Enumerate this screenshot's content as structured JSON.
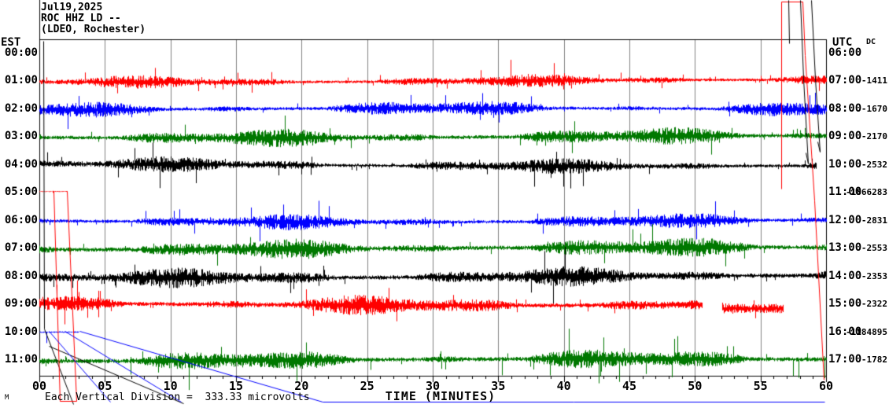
{
  "header": {
    "date": "Jul19,2025",
    "station": "ROC HHZ LD --",
    "network": "(LDEO, Rochester)"
  },
  "axes": {
    "left_label": "EST",
    "right_label": "UTC",
    "dc_label": "DC",
    "x_label": "TIME (MINUTES)"
  },
  "footer": {
    "scale_note": "Each Vertical Division =  333.33 microvolts",
    "corner_glyph": "M"
  },
  "colors": {
    "red": "#FF0000",
    "blue": "#0000FF",
    "green": "#007800",
    "black": "#000000",
    "grid": "#808080",
    "background": "#FFFFFF"
  },
  "chart_data": {
    "type": "line",
    "title": "ROC HHZ LD -- (LDEO, Rochester) Jul19,2025",
    "xlabel": "TIME (MINUTES)",
    "x_range": [
      0,
      60
    ],
    "x_ticks": [
      "00",
      "05",
      "10",
      "15",
      "20",
      "25",
      "30",
      "35",
      "40",
      "45",
      "50",
      "55",
      "60"
    ],
    "minutes_per_row": 60,
    "grid_interval_minutes": 5,
    "minor_tick_minutes": 1,
    "rows": [
      {
        "est": "00:00",
        "utc": "06:00",
        "dc": "",
        "color": "#000000",
        "segments": []
      },
      {
        "est": "01:00",
        "utc": "07:00",
        "dc": "-1411",
        "color": "#FF0000",
        "segments": [
          {
            "x0": 0,
            "x1": 60,
            "amp": 6
          }
        ]
      },
      {
        "est": "02:00",
        "utc": "08:00",
        "dc": "-1670",
        "color": "#0000FF",
        "segments": [
          {
            "x0": 0,
            "x1": 60,
            "amp": 7
          }
        ]
      },
      {
        "est": "03:00",
        "utc": "09:00",
        "dc": "-2170",
        "color": "#007800",
        "segments": [
          {
            "x0": 0,
            "x1": 60,
            "amp": 8
          }
        ]
      },
      {
        "est": "04:00",
        "utc": "10:00",
        "dc": "-2532",
        "color": "#000000",
        "segments": [
          {
            "x0": 0,
            "x1": 59.2,
            "amp": 7
          }
        ]
      },
      {
        "est": "05:00",
        "utc": "11:00",
        "dc": "-1866283",
        "color": "#FF0000",
        "segments": [
          {
            "x0": 0,
            "x1": 2.1,
            "amp": 2
          }
        ]
      },
      {
        "est": "06:00",
        "utc": "12:00",
        "dc": "-2831",
        "color": "#0000FF",
        "segments": [
          {
            "x0": 0,
            "x1": 60,
            "amp": 7,
            "spikes_up": 22
          }
        ]
      },
      {
        "est": "07:00",
        "utc": "13:00",
        "dc": "-2553",
        "color": "#007800",
        "segments": [
          {
            "x0": 0,
            "x1": 60,
            "amp": 9
          }
        ]
      },
      {
        "est": "08:00",
        "utc": "14:00",
        "dc": "-2353",
        "color": "#000000",
        "segments": [
          {
            "x0": 0,
            "x1": 60,
            "amp": 9
          }
        ]
      },
      {
        "est": "09:00",
        "utc": "15:00",
        "dc": "-2322",
        "color": "#FF0000",
        "segments": [
          {
            "x0": 0,
            "x1": 50.5,
            "amp": 9
          },
          {
            "x0": 52.1,
            "x1": 56.7,
            "amp": 8,
            "dy": 4
          }
        ]
      },
      {
        "est": "10:00",
        "utc": "16:00",
        "dc": "-1184895",
        "color": "#0000FF",
        "segments": [
          {
            "x0": 0,
            "x1": 3,
            "amp": 3,
            "spikes_down": 14
          }
        ]
      },
      {
        "est": "11:00",
        "utc": "17:00",
        "dc": "-1782",
        "color": "#007800",
        "segments": [
          {
            "x0": 0,
            "x1": 60,
            "amp": 9,
            "spikes_down": 28
          }
        ]
      }
    ],
    "artifacts": [
      {
        "name": "start-dropout-black",
        "color": "#000000",
        "pts": [
          [
            55,
            52
          ],
          [
            56,
            418
          ],
          [
            93,
            514
          ]
        ]
      },
      {
        "name": "start-dropout-black-2",
        "color": "#000000",
        "pts": [
          [
            62,
            440
          ],
          [
            233,
            513
          ]
        ]
      },
      {
        "name": "hour05-dead-channel-red",
        "color": "#FF0000",
        "pts": [
          [
            68,
            243
          ],
          [
            76,
            510
          ],
          [
            97,
            510
          ],
          [
            85,
            243
          ]
        ]
      },
      {
        "name": "hour10-offscale-blue-1",
        "color": "#0000FF",
        "pts": [
          [
            62,
            421
          ],
          [
            140,
            511
          ]
        ]
      },
      {
        "name": "hour10-offscale-blue-2",
        "color": "#0000FF",
        "pts": [
          [
            82,
            421
          ],
          [
            230,
            511
          ]
        ]
      },
      {
        "name": "hour10-offscale-blue-3",
        "color": "#0000FF",
        "pts": [
          [
            101,
            421
          ],
          [
            410,
            511
          ]
        ]
      },
      {
        "name": "hour10-offscale-blue-bottom-line",
        "color": "#0000FF",
        "pts": [
          [
            410,
            511
          ],
          [
            1048,
            511
          ]
        ]
      },
      {
        "name": "event-red-box-cap",
        "color": "#FF0000",
        "pts": [
          [
            993,
            2
          ],
          [
            1020,
            2
          ],
          [
            1023,
            70
          ],
          [
            1035,
            255
          ],
          [
            1047,
            483
          ]
        ]
      },
      {
        "name": "event-red-left-vertical",
        "color": "#FF0000",
        "pts": [
          [
            993,
            2
          ],
          [
            993,
            240
          ]
        ]
      },
      {
        "name": "event-black-diag-1",
        "color": "#000000",
        "pts": [
          [
            1017,
            0
          ],
          [
            1021,
            100
          ],
          [
            1027,
            208
          ],
          [
            1024,
            194
          ]
        ]
      },
      {
        "name": "event-black-diag-2",
        "color": "#000000",
        "pts": [
          [
            1031,
            0
          ],
          [
            1036,
            100
          ],
          [
            1042,
            193
          ],
          [
            1039,
            180
          ]
        ]
      },
      {
        "name": "event-black-vertical",
        "color": "#000000",
        "pts": [
          [
            1002,
            0
          ],
          [
            1003,
            55
          ]
        ]
      }
    ]
  }
}
